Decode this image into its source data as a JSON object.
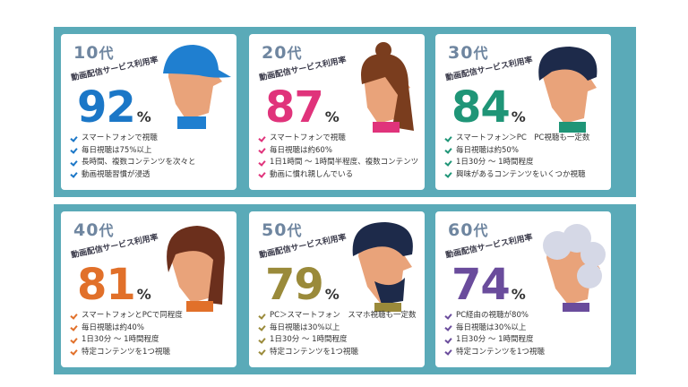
{
  "label": "動画配信サービス利用率",
  "unit": "%",
  "cards": [
    {
      "age": "10",
      "age_suffix": "代",
      "percent": "92",
      "color": "#1b77c7",
      "items": [
        "スマートフォンで視聴",
        "毎日視聴は75%以上",
        "長時間、複数コンテンツを次々と",
        "動画視聴習慣が浸透"
      ],
      "icon": "teen-face-icon"
    },
    {
      "age": "20",
      "age_suffix": "代",
      "percent": "87",
      "color": "#e0337b",
      "items": [
        "スマートフォンで視聴",
        "毎日視聴は約60%",
        "1日1時間 ～ 1時間半程度、複数コンテンツ",
        "動画に慣れ親しんでいる"
      ],
      "icon": "twenties-face-icon"
    },
    {
      "age": "30",
      "age_suffix": "代",
      "percent": "84",
      "color": "#1f9577",
      "items": [
        "スマートフォン＞PC　PC視聴も一定数",
        "毎日視聴は約50%",
        "1日30分 ～ 1時間程度",
        "興味があるコンテンツをいくつか視聴"
      ],
      "icon": "thirties-face-icon"
    },
    {
      "age": "40",
      "age_suffix": "代",
      "percent": "81",
      "color": "#e1702a",
      "items": [
        "スマートフォンとPCで同程度",
        "毎日視聴は約40%",
        "1日30分 ～ 1時間程度",
        "特定コンテンツを1つ視聴"
      ],
      "icon": "forties-face-icon"
    },
    {
      "age": "50",
      "age_suffix": "代",
      "percent": "79",
      "color": "#9a8a3a",
      "items": [
        "PC＞スマートフォン　スマホ視聴も一定数",
        "毎日視聴は30%以上",
        "1日30分 ～ 1時間程度",
        "特定コンテンツを1つ視聴"
      ],
      "icon": "fifties-face-icon"
    },
    {
      "age": "60",
      "age_suffix": "代",
      "percent": "74",
      "color": "#6a4c9c",
      "items": [
        "PC経由の視聴が80%",
        "毎日視聴は30%以上",
        "1日30分 ～ 1時間程度",
        "特定コンテンツを1つ視聴"
      ],
      "icon": "sixties-face-icon"
    }
  ]
}
